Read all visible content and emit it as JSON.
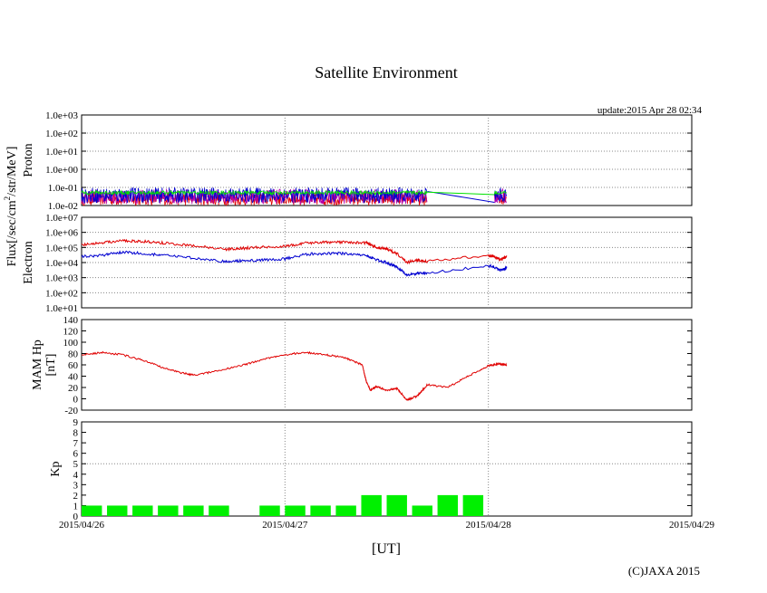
{
  "title": "Satellite Environment",
  "update": "update:2015 Apr 28 02:34",
  "copyright": "(C)JAXA 2015",
  "xlabel": "[UT]",
  "x_ticks": [
    "2015/04/26",
    "2015/04/27",
    "2015/04/28",
    "2015/04/29"
  ],
  "x_range_days": [
    0,
    3
  ],
  "colors": {
    "red": "#e00000",
    "blue": "#0000d0",
    "green": "#00e000",
    "purple": "#b000b0",
    "grid": "#888888"
  },
  "flux_ylabel_parts": [
    "Flux[/sec/cm",
    "2",
    "/str/MeV]"
  ],
  "chart_data": [
    {
      "id": "proton",
      "type": "line",
      "title": "",
      "ylabel": "Proton",
      "yscale": "log",
      "ylim": [
        0.01,
        1000
      ],
      "yticks": [
        "1.0e-02",
        "1.0e-01",
        "1.0e+00",
        "1.0e+01",
        "1.0e+02",
        "1.0e+03"
      ],
      "grid_values": [
        0.1,
        1,
        10,
        100
      ],
      "series": [
        {
          "name": "red",
          "color": "#e00000",
          "x": [
            0,
            1.7,
            2.03,
            2.09
          ],
          "noise": {
            "lo": 0.01,
            "hi": 0.06
          }
        },
        {
          "name": "purple",
          "color": "#b000b0",
          "x": [
            0,
            1.7,
            2.03,
            2.09
          ],
          "noise": {
            "lo": 0.012,
            "hi": 0.08
          }
        },
        {
          "name": "blue",
          "color": "#0000d0",
          "x": [
            0,
            1.7,
            2.03,
            2.09
          ],
          "noise": {
            "lo": 0.014,
            "hi": 0.1
          },
          "gap_line": [
            [
              1.7,
              0.06
            ],
            [
              2.03,
              0.015
            ]
          ]
        },
        {
          "name": "green",
          "color": "#00e000",
          "x": [
            0,
            1.7,
            2.03,
            2.09
          ],
          "noise": {
            "lo": 0.04,
            "hi": 0.065
          },
          "gap_line": [
            [
              1.7,
              0.055
            ],
            [
              2.03,
              0.04
            ]
          ]
        }
      ]
    },
    {
      "id": "electron",
      "type": "line",
      "ylabel": "Electron",
      "yscale": "log",
      "ylim": [
        10,
        10000000
      ],
      "yticks": [
        "1.0e+01",
        "1.0e+02",
        "1.0e+03",
        "1.0e+04",
        "1.0e+05",
        "1.0e+06",
        "1.0e+07"
      ],
      "grid_values": [
        100,
        1000,
        10000,
        100000,
        1000000
      ],
      "series": [
        {
          "name": "red",
          "color": "#e00000",
          "x": [
            0,
            0.1,
            0.2,
            0.3,
            0.4,
            0.55,
            0.7,
            0.8,
            0.9,
            1.0,
            1.1,
            1.2,
            1.3,
            1.4,
            1.45,
            1.5,
            1.55,
            1.6,
            1.65,
            1.7,
            2.0,
            2.03,
            2.06,
            2.09
          ],
          "y": [
            150000,
            200000,
            280000,
            250000,
            200000,
            130000,
            75000,
            90000,
            110000,
            120000,
            190000,
            220000,
            220000,
            200000,
            100000,
            80000,
            40000,
            10000,
            15000,
            12000,
            30000,
            25000,
            15000,
            25000
          ]
        },
        {
          "name": "blue",
          "color": "#0000d0",
          "x": [
            0,
            0.1,
            0.2,
            0.3,
            0.4,
            0.55,
            0.7,
            0.8,
            0.9,
            1.0,
            1.1,
            1.2,
            1.3,
            1.4,
            1.45,
            1.5,
            1.55,
            1.6,
            1.65,
            1.7,
            2.0,
            2.03,
            2.06,
            2.09
          ],
          "y": [
            25000,
            30000,
            50000,
            40000,
            30000,
            20000,
            12000,
            13000,
            15000,
            17000,
            35000,
            40000,
            40000,
            30000,
            15000,
            10000,
            5000,
            1500,
            2000,
            2000,
            6000,
            5000,
            3000,
            4500
          ]
        }
      ]
    },
    {
      "id": "mamhp",
      "type": "line",
      "ylabel": [
        "MAM Hp",
        "[nT]"
      ],
      "yscale": "linear",
      "ylim": [
        -20,
        140
      ],
      "yticks": [
        -20,
        0,
        20,
        40,
        60,
        80,
        100,
        120,
        140
      ],
      "series": [
        {
          "name": "Hp",
          "color": "#e00000",
          "x": [
            0,
            0.1,
            0.2,
            0.3,
            0.4,
            0.5,
            0.55,
            0.65,
            0.8,
            0.9,
            1.0,
            1.1,
            1.2,
            1.3,
            1.38,
            1.4,
            1.42,
            1.45,
            1.5,
            1.55,
            1.6,
            1.65,
            1.7,
            1.8,
            1.9,
            2.0,
            2.05,
            2.09
          ],
          "y": [
            78,
            82,
            78,
            68,
            55,
            45,
            42,
            48,
            60,
            70,
            78,
            82,
            78,
            72,
            60,
            30,
            15,
            22,
            15,
            18,
            -2,
            5,
            25,
            20,
            40,
            58,
            62,
            60
          ]
        }
      ]
    },
    {
      "id": "kp",
      "type": "bar",
      "ylabel": "Kp",
      "ylim": [
        0,
        9
      ],
      "yticks": [
        0,
        1,
        2,
        3,
        4,
        5,
        6,
        7,
        8,
        9
      ],
      "dashed_at": 5,
      "bar_width_days": 0.1,
      "bar_start_days": [
        0,
        0.125,
        0.25,
        0.375,
        0.5,
        0.625,
        0.875,
        1.0,
        1.125,
        1.25,
        1.375,
        1.5,
        1.625,
        1.75,
        1.875
      ],
      "values": [
        1,
        1,
        1,
        1,
        1,
        1,
        1,
        1,
        1,
        1,
        2,
        2,
        1,
        2,
        2
      ],
      "color": "#00f000"
    }
  ]
}
